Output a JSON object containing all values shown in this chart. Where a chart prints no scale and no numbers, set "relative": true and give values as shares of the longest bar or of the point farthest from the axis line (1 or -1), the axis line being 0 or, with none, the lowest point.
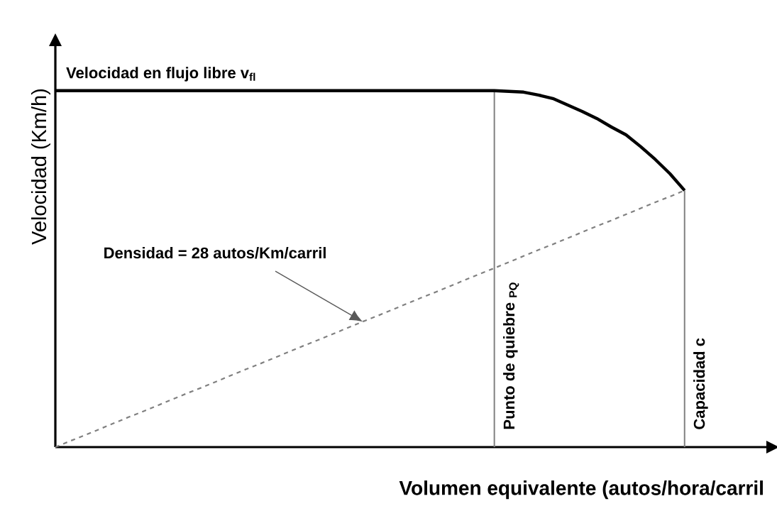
{
  "chart_data": {
    "type": "line",
    "relative": true,
    "xlabel": "Volumen equivalente (autos/hora/carril",
    "ylabel": "Velocidad (Km/h)",
    "categories": [
      null,
      null,
      null,
      null,
      null,
      null,
      null,
      null,
      null,
      null,
      null,
      null,
      null,
      null,
      null,
      null,
      null,
      null,
      null,
      null,
      null,
      null,
      null,
      null,
      null,
      null,
      null,
      null,
      null,
      null,
      null,
      null,
      null,
      null,
      null,
      null,
      null,
      null,
      null,
      null,
      null,
      null,
      null,
      null
    ],
    "series": [
      {
        "color": "#000000",
        "line_style": "solid",
        "values": [
          1,
          1,
          1,
          1,
          1,
          1,
          1,
          1,
          1,
          1,
          1,
          1,
          1,
          1,
          1,
          1,
          1,
          1,
          1,
          1,
          1,
          1,
          1,
          1,
          1,
          1,
          1,
          1,
          1,
          1,
          1,
          0.998,
          0.996,
          0.988,
          0.978,
          0.96,
          0.942,
          0.922,
          0.898,
          0.876,
          0.843,
          0.807,
          0.767,
          0.72
        ]
      },
      {
        "color": "#808080",
        "line_style": "dashed",
        "values": [
          0,
          0.017,
          0.033,
          0.05,
          0.067,
          0.084,
          0.1,
          0.117,
          0.134,
          0.151,
          0.167,
          0.184,
          0.201,
          0.218,
          0.234,
          0.251,
          0.268,
          0.285,
          0.301,
          0.318,
          0.335,
          0.352,
          0.368,
          0.385,
          0.402,
          0.419,
          0.435,
          0.452,
          0.469,
          0.486,
          0.502,
          0.519,
          0.536,
          0.553,
          0.569,
          0.586,
          0.603,
          0.62,
          0.636,
          0.653,
          0.67,
          0.687,
          0.703,
          0.72
        ]
      }
    ],
    "annotations": [
      "Velocidad en flujo libre v$_{fl}$",
      "Densidad = 28 autos/Km/carril",
      "Punto de quiebre $_{PQ}$",
      "Capacidad c"
    ]
  }
}
